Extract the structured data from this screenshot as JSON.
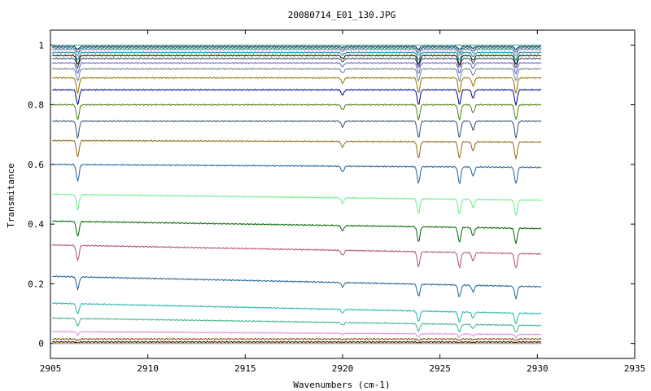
{
  "chart_data": {
    "type": "line",
    "title": "20080714_E01_130.JPG",
    "xlabel": "Wavenumbers (cm-1)",
    "ylabel": "Transmitance",
    "xlim": [
      2905,
      2935
    ],
    "ylim": [
      -0.05,
      1.05
    ],
    "x_ticks": [
      2905,
      2910,
      2915,
      2920,
      2925,
      2930,
      2935
    ],
    "x_tick_labels": [
      "2905",
      "2910",
      "2915",
      "2920",
      "2925",
      "2930",
      "2935"
    ],
    "y_ticks": [
      0,
      0.2,
      0.4,
      0.6,
      0.8,
      1
    ],
    "y_tick_labels": [
      "0",
      "0.2",
      "0.4",
      "0.6",
      "0.8",
      "1"
    ],
    "grid": false,
    "legend": "none",
    "x_data_range": [
      2905.1,
      2930.2
    ],
    "absorption_lines": [
      2906.4,
      2920.0,
      2923.9,
      2926.0,
      2926.7,
      2928.9
    ],
    "series": [
      {
        "baseline": 1.0,
        "depth": 0.0,
        "slope": 0.0,
        "color": "#3cb371"
      },
      {
        "baseline": 0.995,
        "depth": 0.01,
        "slope": 0.0,
        "color": "#000080"
      },
      {
        "baseline": 0.99,
        "depth": 0.015,
        "slope": 0.0,
        "color": "#2e8b57"
      },
      {
        "baseline": 0.985,
        "depth": 0.02,
        "slope": 0.0,
        "color": "#9370db"
      },
      {
        "baseline": 0.975,
        "depth": 0.025,
        "slope": 0.0,
        "color": "#008b8b"
      },
      {
        "baseline": 0.965,
        "depth": 0.03,
        "slope": 0.0,
        "color": "#000000"
      },
      {
        "baseline": 0.955,
        "depth": 0.03,
        "slope": 0.0,
        "color": "#2f4f4f"
      },
      {
        "baseline": 0.94,
        "depth": 0.035,
        "slope": 0.0,
        "color": "#6a5acd"
      },
      {
        "baseline": 0.92,
        "depth": 0.04,
        "slope": 0.0,
        "color": "#708090"
      },
      {
        "baseline": 0.89,
        "depth": 0.05,
        "slope": 0.0,
        "color": "#8b7500"
      },
      {
        "baseline": 0.85,
        "depth": 0.05,
        "slope": 0.0,
        "color": "#00008b"
      },
      {
        "baseline": 0.8,
        "depth": 0.05,
        "slope": 0.0,
        "color": "#4b7f10"
      },
      {
        "baseline": 0.745,
        "depth": 0.055,
        "slope": 0.0,
        "color": "#2f4f6f"
      },
      {
        "baseline": 0.68,
        "depth": 0.055,
        "slope": -0.005,
        "color": "#8b6914"
      },
      {
        "baseline": 0.6,
        "depth": 0.055,
        "slope": -0.01,
        "color": "#1f5f9f"
      },
      {
        "baseline": 0.5,
        "depth": 0.05,
        "slope": -0.02,
        "color": "#66ee88"
      },
      {
        "baseline": 0.41,
        "depth": 0.05,
        "slope": -0.025,
        "color": "#006400"
      },
      {
        "baseline": 0.33,
        "depth": 0.05,
        "slope": -0.03,
        "color": "#b24a7a"
      },
      {
        "baseline": 0.225,
        "depth": 0.04,
        "slope": -0.035,
        "color": "#1a5f8f"
      },
      {
        "baseline": 0.135,
        "depth": 0.035,
        "slope": -0.035,
        "color": "#20b2aa"
      },
      {
        "baseline": 0.085,
        "depth": 0.025,
        "slope": -0.025,
        "color": "#3cb389"
      },
      {
        "baseline": 0.04,
        "depth": 0.01,
        "slope": -0.01,
        "color": "#dd88dd"
      },
      {
        "baseline": 0.015,
        "depth": 0.005,
        "slope": 0.0,
        "color": "#8b4500"
      },
      {
        "baseline": 0.005,
        "depth": 0.003,
        "slope": 0.0,
        "color": "#000000"
      },
      {
        "baseline": 0.0,
        "depth": 0.0,
        "slope": 0.0,
        "color": "#1e90ff"
      },
      {
        "baseline": 0.0,
        "depth": 0.0,
        "slope": 0.0,
        "color": "#ffa500"
      }
    ]
  }
}
